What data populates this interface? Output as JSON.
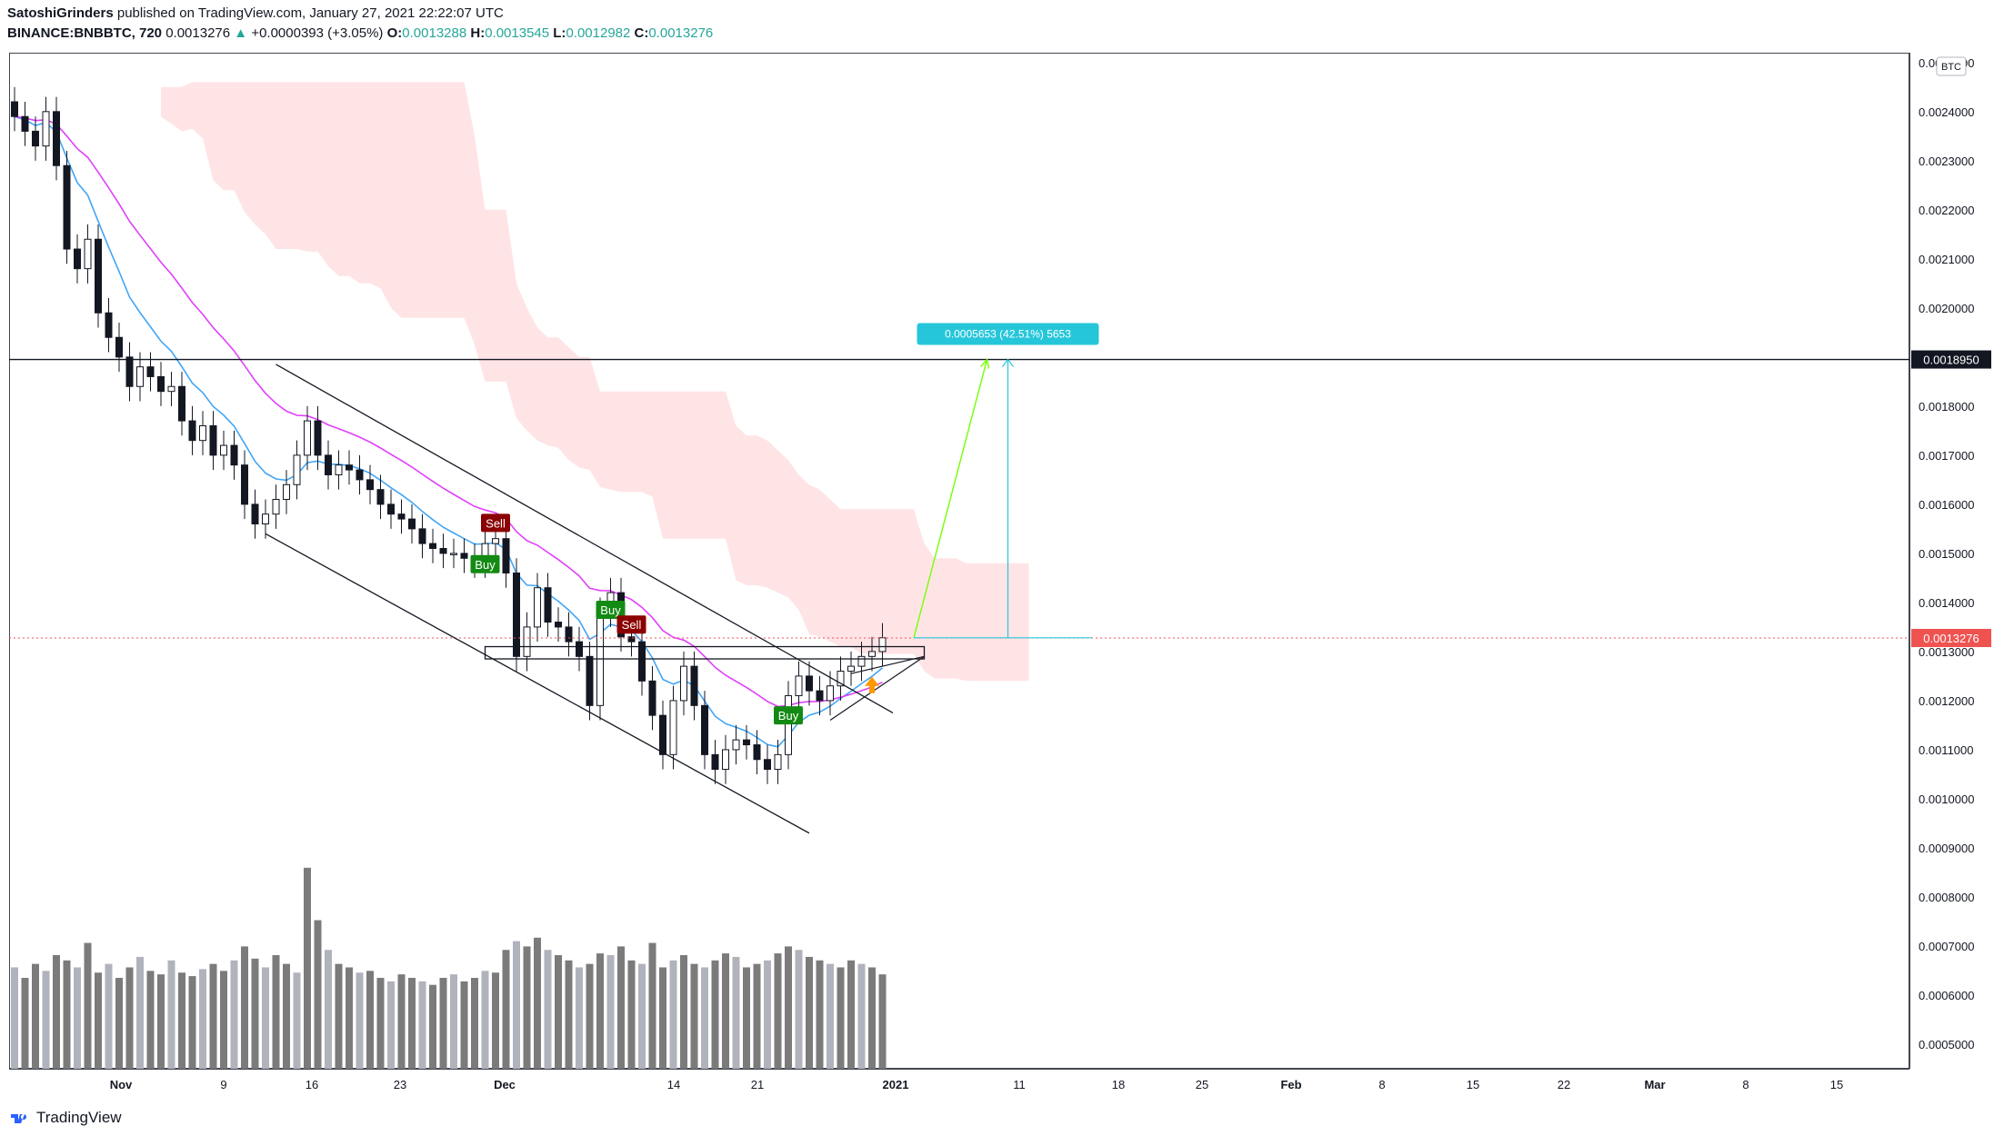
{
  "header": {
    "publisher": "SatoshiGrinders",
    "published_text": " published on TradingView.com, January 27, 2021 22:22:07 UTC",
    "symbol": "BINANCE:BNBBTC, 720",
    "last": "0.0013276",
    "change": "+0.0000393 (+3.05%)",
    "o_label": "O:",
    "o_value": "0.0013288",
    "h_label": "H:",
    "h_value": "0.0013545",
    "l_label": "L:",
    "l_value": "0.0012982",
    "c_label": "C:",
    "c_value": "0.0013276"
  },
  "currency_badge": "BTC",
  "footer": {
    "brand": "TradingView"
  },
  "colors": {
    "up": "#26a69a",
    "down": "#ef5350",
    "candle_up": "#ffffff",
    "candle_down": "#131722",
    "ema_fast": "#42a5f5",
    "ema_slow": "#e040fb",
    "cloud_bear": "#ffcdd2",
    "cloud_bull": "#c8e6c9",
    "buy": "#138a13",
    "sell": "#8b0000",
    "measure": "#26c6da",
    "projection": "#76ff03",
    "current_price": "#ef5350",
    "volume": "#7b7b7b"
  },
  "chart_data": {
    "type": "candlestick",
    "title": "BINANCE:BNBBTC, 720",
    "ylim": [
      0.00045,
      0.00252
    ],
    "price_ticks": [
      "0.0025000",
      "0.0024000",
      "0.0023000",
      "0.0022000",
      "0.0021000",
      "0.0020000",
      "0.0019000",
      "0.0018000",
      "0.0017000",
      "0.0016000",
      "0.0015000",
      "0.0014000",
      "0.0013000",
      "0.0012000",
      "0.0011000",
      "0.0010000",
      "0.0009000",
      "0.0008000",
      "0.0007000",
      "0.0006000",
      "0.0005000"
    ],
    "time_ticks": [
      "Nov",
      "9",
      "16",
      "23",
      "Dec",
      "14",
      "21",
      "2021",
      "11",
      "18",
      "25",
      "Feb",
      "8",
      "15",
      "22",
      "Mar",
      "8",
      "15"
    ],
    "time_tick_bold": [
      "Nov",
      "Dec",
      "2021",
      "Feb",
      "Mar"
    ],
    "horizontal_level": {
      "value": "0.0018950"
    },
    "current_price": {
      "value": "0.0013276"
    },
    "measure_label": "0.0005653 (42.51%) 5653",
    "close_series": [
      0.00239,
      0.00236,
      0.00233,
      0.0024,
      0.00229,
      0.00212,
      0.00208,
      0.00214,
      0.00199,
      0.00194,
      0.0019,
      0.00184,
      0.00188,
      0.00186,
      0.00183,
      0.00184,
      0.00177,
      0.00173,
      0.00176,
      0.0017,
      0.00172,
      0.00168,
      0.0016,
      0.00156,
      0.00158,
      0.00161,
      0.00164,
      0.0017,
      0.00177,
      0.0017,
      0.00166,
      0.00168,
      0.00167,
      0.00165,
      0.00163,
      0.0016,
      0.00158,
      0.00157,
      0.00155,
      0.00152,
      0.00151,
      0.0015,
      0.0015,
      0.00149,
      0.00148,
      0.00152,
      0.00153,
      0.00146,
      0.00129,
      0.00135,
      0.00143,
      0.00136,
      0.00135,
      0.00132,
      0.00129,
      0.00119,
      0.00138,
      0.00142,
      0.00133,
      0.00132,
      0.00124,
      0.00117,
      0.00109,
      0.0012,
      0.00127,
      0.00119,
      0.00109,
      0.00106,
      0.0011,
      0.00112,
      0.00111,
      0.00108,
      0.00106,
      0.00109,
      0.00121,
      0.00125,
      0.00122,
      0.0012,
      0.00123,
      0.00126,
      0.00127,
      0.00129,
      0.0013,
      0.001328
    ],
    "volume_series": [
      58,
      52,
      60,
      56,
      65,
      62,
      58,
      72,
      55,
      60,
      52,
      58,
      64,
      56,
      54,
      62,
      55,
      53,
      57,
      60,
      56,
      62,
      70,
      63,
      58,
      65,
      60,
      55,
      115,
      85,
      68,
      60,
      58,
      55,
      56,
      52,
      50,
      54,
      52,
      50,
      48,
      52,
      54,
      50,
      52,
      56,
      55,
      68,
      73,
      70,
      75,
      68,
      65,
      62,
      58,
      60,
      66,
      65,
      70,
      62,
      60,
      72,
      58,
      62,
      65,
      60,
      58,
      62,
      66,
      64,
      58,
      60,
      62,
      66,
      70,
      68,
      64,
      62,
      60,
      58,
      62,
      60,
      58,
      54
    ],
    "signals": [
      {
        "type": "Sell",
        "label": "Sell"
      },
      {
        "type": "Buy",
        "label": "Buy"
      },
      {
        "type": "Buy",
        "label": "Buy"
      },
      {
        "type": "Sell",
        "label": "Sell"
      },
      {
        "type": "Buy",
        "label": "Buy"
      }
    ]
  }
}
